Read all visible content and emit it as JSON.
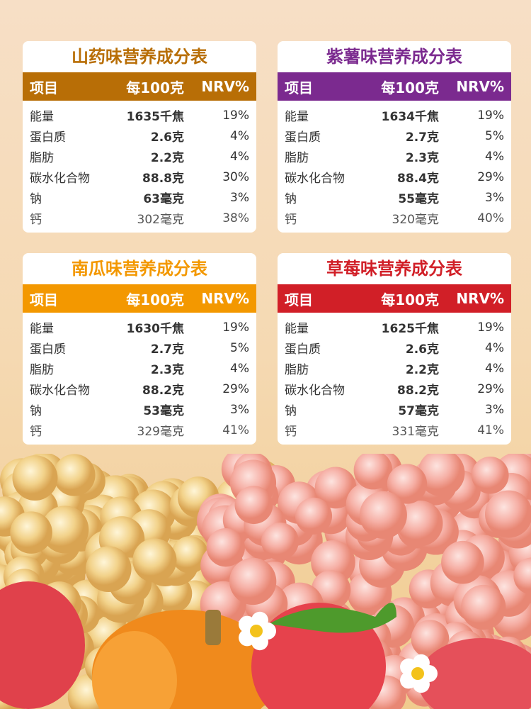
{
  "tables": [
    {
      "title": "山药味营养成分表",
      "color": "#b86e06",
      "header": [
        "项目",
        "每100克",
        "NRV%"
      ],
      "rows": [
        [
          "能量",
          "1635千焦",
          "19%"
        ],
        [
          "蛋白质",
          "2.6克",
          "4%"
        ],
        [
          "脂肪",
          "2.2克",
          "4%"
        ],
        [
          "碳水化合物",
          "88.8克",
          "30%"
        ],
        [
          "钠",
          "63毫克",
          "3%"
        ],
        [
          "钙",
          "302毫克",
          "38%"
        ]
      ]
    },
    {
      "title": "紫薯味营养成分表",
      "color": "#7b2a8f",
      "header": [
        "项目",
        "每100克",
        "NRV%"
      ],
      "rows": [
        [
          "能量",
          "1634千焦",
          "19%"
        ],
        [
          "蛋白质",
          "2.7克",
          "5%"
        ],
        [
          "脂肪",
          "2.3克",
          "4%"
        ],
        [
          "碳水化合物",
          "88.4克",
          "29%"
        ],
        [
          "钠",
          "55毫克",
          "3%"
        ],
        [
          "钙",
          "320毫克",
          "40%"
        ]
      ]
    },
    {
      "title": "南瓜味营养成分表",
      "color": "#f39800",
      "header": [
        "项目",
        "每100克",
        "NRV%"
      ],
      "rows": [
        [
          "能量",
          "1630千焦",
          "19%"
        ],
        [
          "蛋白质",
          "2.7克",
          "5%"
        ],
        [
          "脂肪",
          "2.3克",
          "4%"
        ],
        [
          "碳水化合物",
          "88.2克",
          "29%"
        ],
        [
          "钠",
          "53毫克",
          "3%"
        ],
        [
          "钙",
          "329毫克",
          "41%"
        ]
      ]
    },
    {
      "title": "草莓味营养成分表",
      "color": "#d11f27",
      "header": [
        "项目",
        "每100克",
        "NRV%"
      ],
      "rows": [
        [
          "能量",
          "1625千焦",
          "19%"
        ],
        [
          "蛋白质",
          "2.6克",
          "4%"
        ],
        [
          "脂肪",
          "2.2克",
          "4%"
        ],
        [
          "碳水化合物",
          "88.2克",
          "29%"
        ],
        [
          "钠",
          "57毫克",
          "3%"
        ],
        [
          "钙",
          "331毫克",
          "41%"
        ]
      ]
    }
  ]
}
